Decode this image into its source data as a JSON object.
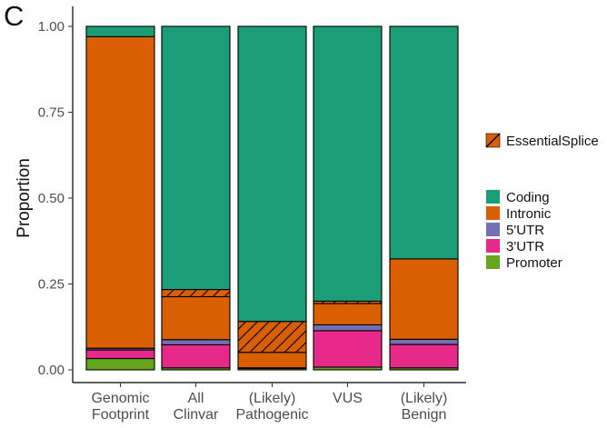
{
  "panel_label": "C",
  "chart_data": {
    "type": "bar",
    "stacked": true,
    "ylabel": "Proportion",
    "xlabel": "",
    "ylim": [
      0,
      1
    ],
    "yticks": [
      "0.00",
      "0.25",
      "0.50",
      "0.75",
      "1.00"
    ],
    "grid": false,
    "legend_position": "right",
    "categories": [
      [
        "Genomic",
        "Footprint"
      ],
      [
        "All",
        "Clinvar"
      ],
      [
        "(Likely)",
        "Pathogenic"
      ],
      [
        "VUS"
      ],
      [
        "(Likely)",
        "Benign"
      ]
    ],
    "stack_order": [
      "Promoter",
      "3'UTR",
      "5'UTR",
      "Intronic",
      "EssentialSplice",
      "Coding"
    ],
    "series": [
      {
        "name": "Promoter",
        "color": "#66a61e",
        "values": [
          0.033,
          0.006,
          0.004,
          0.008,
          0.006
        ]
      },
      {
        "name": "3'UTR",
        "color": "#e7298a",
        "values": [
          0.025,
          0.067,
          0.0,
          0.106,
          0.068
        ]
      },
      {
        "name": "5'UTR",
        "color": "#7570b3",
        "values": [
          0.005,
          0.015,
          0.002,
          0.017,
          0.015
        ]
      },
      {
        "name": "Intronic",
        "color": "#d95f02",
        "values": [
          0.907,
          0.125,
          0.045,
          0.062,
          0.234
        ]
      },
      {
        "name": "EssentialSplice",
        "color": "#d95f02",
        "hatched": true,
        "values": [
          0.0,
          0.021,
          0.09,
          0.007,
          0.0
        ]
      },
      {
        "name": "Coding",
        "color": "#1b9e77",
        "values": [
          0.03,
          0.766,
          0.859,
          0.8,
          0.677
        ]
      }
    ]
  },
  "legend": {
    "splice": {
      "label": "EssentialSplice",
      "color": "#d95f02"
    },
    "items": [
      {
        "label": "Coding",
        "color": "#1b9e77"
      },
      {
        "label": "Intronic",
        "color": "#d95f02"
      },
      {
        "label": "5'UTR",
        "color": "#7570b3"
      },
      {
        "label": "3'UTR",
        "color": "#e7298a"
      },
      {
        "label": "Promoter",
        "color": "#66a61e"
      }
    ]
  }
}
